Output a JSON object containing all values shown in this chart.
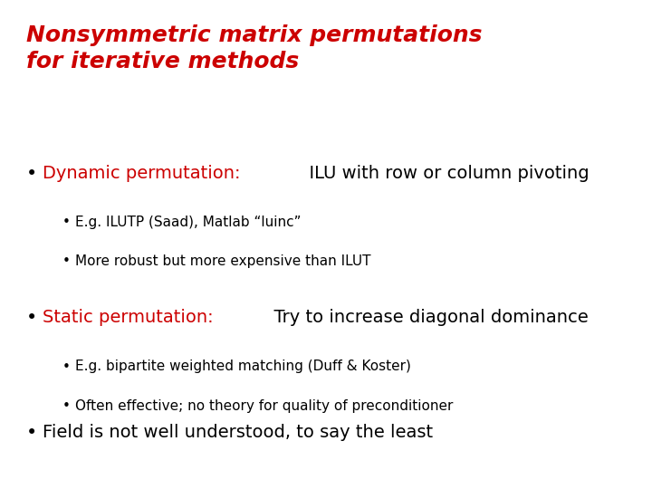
{
  "background_color": "#ffffff",
  "title_line1": "Nonsymmetric matrix permutations",
  "title_line2": "for iterative methods",
  "title_color": "#cc0000",
  "title_fontsize": 18,
  "title_style": "italic",
  "title_weight": "bold",
  "bullet1_label": "Dynamic permutation:",
  "bullet1_rest": "  ILU with row or column pivoting",
  "bullet1_color": "#cc0000",
  "bullet1_fontsize": 14,
  "sub1a": "E.g. ILUTP (Saad), Matlab “luinc”",
  "sub1b": "More robust but more expensive than ILUT",
  "bullet2_label": "Static permutation:",
  "bullet2_rest": "  Try to increase diagonal dominance",
  "bullet2_color": "#cc0000",
  "bullet2_fontsize": 14,
  "sub2a": "E.g. bipartite weighted matching (Duff & Koster)",
  "sub2b": "Often effective; no theory for quality of preconditioner",
  "bullet3": "Field is not well understood, to say the least",
  "bullet3_fontsize": 14,
  "sub_fontsize": 11,
  "text_color": "#000000",
  "bullet_color": "#000000"
}
